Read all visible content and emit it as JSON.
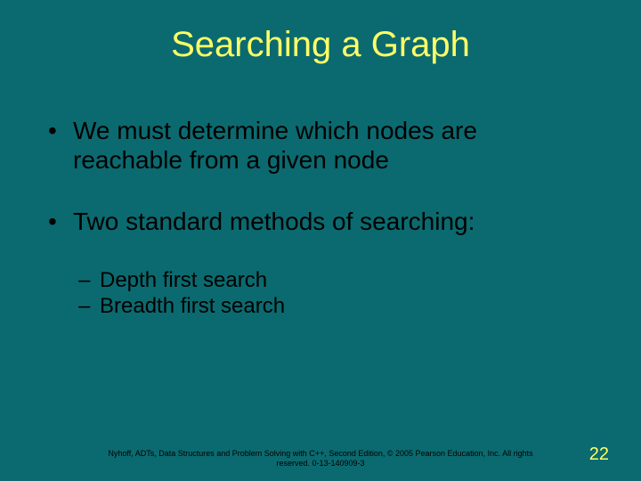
{
  "slide": {
    "background_color": "#0b6a6f",
    "title_color": "#ffff66",
    "text_color": "#000000",
    "footer_color": "#000000",
    "pagenum_color": "#ffff66",
    "title_fontsize": 40,
    "bullet1_fontsize": 28,
    "bullet2_fontsize": 24,
    "footer_fontsize": 9,
    "pagenum_fontsize": 20
  },
  "title": "Searching a Graph",
  "bullets": {
    "b1": "We must determine which nodes are reachable from a given node",
    "b2": "Two standard methods of searching:",
    "b2_sub1": "Depth first search",
    "b2_sub2": "Breadth first search"
  },
  "footer": "Nyhoff, ADTs, Data Structures and Problem Solving with C++, Second Edition, © 2005 Pearson Education, Inc. All rights reserved. 0-13-140909-3",
  "page_number": "22"
}
